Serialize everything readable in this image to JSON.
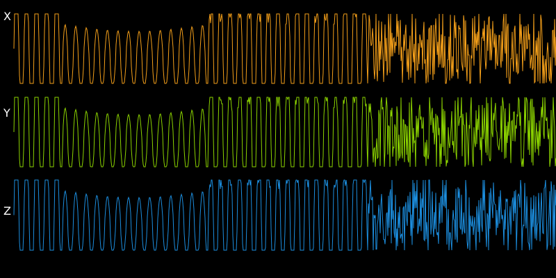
{
  "channels": [
    {
      "label": "X",
      "color": "#f5a01a",
      "icon": "waveform"
    },
    {
      "label": "Y",
      "color": "#8cd400",
      "icon": "waveform"
    },
    {
      "label": "Z",
      "color": "#1c8fe0",
      "icon": "waveform"
    }
  ],
  "background": "#000000"
}
